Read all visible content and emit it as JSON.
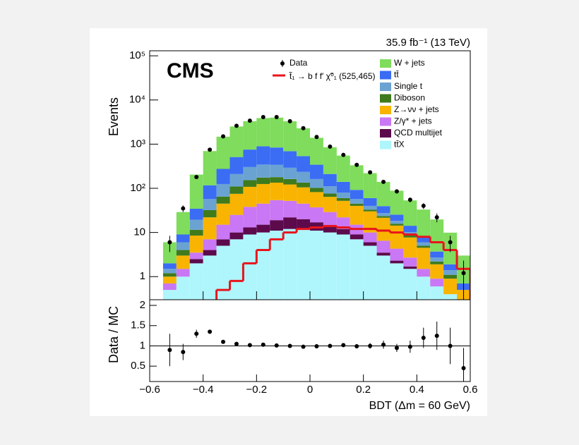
{
  "chart_data": [
    {
      "type": "histogram",
      "log_y": true,
      "stacked": true,
      "annotation": "35.9 fb⁻¹ (13 TeV)",
      "label": "CMS",
      "ylabel": "Events",
      "bins": [
        -0.6,
        -0.55,
        -0.5,
        -0.45,
        -0.4,
        -0.35,
        -0.3,
        -0.25,
        -0.2,
        -0.15,
        -0.1,
        -0.05,
        0,
        0.05,
        0.1,
        0.15,
        0.2,
        0.25,
        0.3,
        0.35,
        0.4,
        0.45,
        0.5,
        0.55,
        0.6
      ],
      "xlim": [
        -0.6,
        0.6
      ],
      "ylim": [
        0.3,
        130000
      ],
      "yticks": [
        1,
        10,
        {
          "value": 100,
          "label": "10²"
        },
        {
          "value": 1000,
          "label": "10³"
        },
        {
          "value": 10000,
          "label": "10⁴"
        },
        {
          "value": 100000,
          "label": "10⁵"
        }
      ],
      "series": [
        {
          "name": "W + jets",
          "color": "#7fdc5c",
          "values": [
            0,
            4,
            20,
            170,
            580,
            1200,
            2000,
            2550,
            3000,
            3150,
            2600,
            1750,
            1050,
            640,
            410,
            240,
            160,
            100,
            63,
            39,
            25,
            16,
            8,
            2.3
          ]
        },
        {
          "name": "tt̄",
          "color": "#3a6cf4",
          "values": [
            0,
            0.5,
            3,
            15,
            60,
            150,
            300,
            450,
            550,
            500,
            400,
            300,
            180,
            100,
            60,
            35,
            20,
            12,
            7,
            4,
            2,
            1,
            0.5,
            0.2
          ]
        },
        {
          "name": "Single t",
          "color": "#6aa3d2",
          "values": [
            0,
            0.3,
            2,
            8,
            25,
            60,
            100,
            150,
            170,
            160,
            130,
            100,
            60,
            35,
            20,
            12,
            7,
            4,
            2.5,
            1.5,
            1,
            0.5,
            0.3,
            0
          ]
        },
        {
          "name": "Diboson",
          "color": "#3f7a1c",
          "values": [
            0,
            0.2,
            1,
            3,
            10,
            20,
            35,
            45,
            50,
            45,
            40,
            30,
            20,
            12,
            8,
            5,
            3,
            2,
            1.5,
            1,
            0.5,
            0.3,
            0.2,
            0
          ]
        },
        {
          "name": "Z→νν + jets",
          "color": "#f8b400",
          "values": [
            0,
            0.3,
            1.5,
            5,
            15,
            30,
            50,
            70,
            80,
            80,
            70,
            60,
            45,
            35,
            30,
            25,
            20,
            15,
            10,
            5,
            3,
            1,
            0.5,
            0.2
          ]
        },
        {
          "name": "Z/γ* + jets",
          "color": "#c977f4",
          "values": [
            0,
            0.2,
            0.5,
            1,
            3,
            8,
            15,
            25,
            30,
            35,
            30,
            25,
            20,
            15,
            10,
            6,
            4,
            3,
            2,
            1,
            0.5,
            0.3,
            0,
            0
          ]
        },
        {
          "name": "QCD multijet",
          "color": "#5c0a4c",
          "values": [
            0,
            0,
            0,
            0.5,
            1,
            2,
            3,
            4,
            5,
            8,
            10,
            8,
            6,
            4,
            3,
            2,
            1,
            0.5,
            0.3,
            0.2,
            0,
            0,
            0,
            0
          ]
        },
        {
          "name": "tt̄X",
          "color": "#aef6fb",
          "values": [
            0,
            0.5,
            1,
            2,
            3,
            5,
            7,
            9,
            10,
            11,
            12,
            12,
            11,
            10,
            9,
            7,
            5,
            3,
            2,
            1.5,
            1,
            0.6,
            0.4,
            0.3
          ]
        }
      ],
      "data": {
        "name": "Data",
        "color": "#000000",
        "values": [
          null,
          6,
          35,
          180,
          750,
          1500,
          2600,
          3400,
          4100,
          4100,
          3300,
          2300,
          1450,
          880,
          570,
          340,
          230,
          140,
          85,
          55,
          40,
          22,
          6,
          1.2
        ],
        "errors": [
          null,
          2.4,
          5.9,
          13,
          27,
          39,
          51,
          58,
          64,
          64,
          57,
          48,
          38,
          30,
          24,
          18,
          15,
          12,
          9,
          7,
          6,
          5,
          2.4,
          1.1
        ]
      },
      "signal": {
        "name": "t̃₁ → b f f′ χ̃⁰₁ (525,465)",
        "color": "#e8141c",
        "values": [
          null,
          null,
          null,
          null,
          null,
          0.5,
          0.8,
          2,
          4,
          7,
          10,
          12,
          13,
          14,
          13,
          12,
          12,
          11,
          10,
          9,
          8,
          6,
          4,
          1.5
        ]
      }
    },
    {
      "type": "errorbar",
      "ylabel": "Data / MC",
      "xlabel": "BDT (Δm = 60 GeV)",
      "x": [
        -0.575,
        -0.525,
        -0.475,
        -0.425,
        -0.375,
        -0.325,
        -0.275,
        -0.225,
        -0.175,
        -0.125,
        -0.075,
        -0.025,
        0.025,
        0.075,
        0.125,
        0.175,
        0.225,
        0.275,
        0.325,
        0.375,
        0.425,
        0.475,
        0.525,
        0.575
      ],
      "values": [
        null,
        0.9,
        0.85,
        1.3,
        1.35,
        1.1,
        1.05,
        1.02,
        1.03,
        1.01,
        1.0,
        0.98,
        0.99,
        1.0,
        1.02,
        0.99,
        1.0,
        1.03,
        0.95,
        0.98,
        1.2,
        1.25,
        1.0,
        0.45
      ],
      "errors": [
        null,
        0.4,
        0.2,
        0.1,
        0.05,
        0.03,
        0.02,
        0.02,
        0.02,
        0.02,
        0.02,
        0.02,
        0.03,
        0.03,
        0.04,
        0.05,
        0.07,
        0.1,
        0.1,
        0.15,
        0.25,
        0.35,
        0.45,
        0.5
      ],
      "color": "#000000",
      "xlim": [
        -0.6,
        0.6
      ],
      "ylim": [
        0.12,
        2.14
      ],
      "xticks": [
        {
          "value": -0.6,
          "label": "−0.6"
        },
        {
          "value": -0.4,
          "label": "−0.4"
        },
        {
          "value": -0.2,
          "label": "−0.2"
        },
        0,
        0.2,
        0.4,
        0.6
      ],
      "yticks": [
        0.5,
        1,
        1.5,
        2
      ]
    }
  ]
}
